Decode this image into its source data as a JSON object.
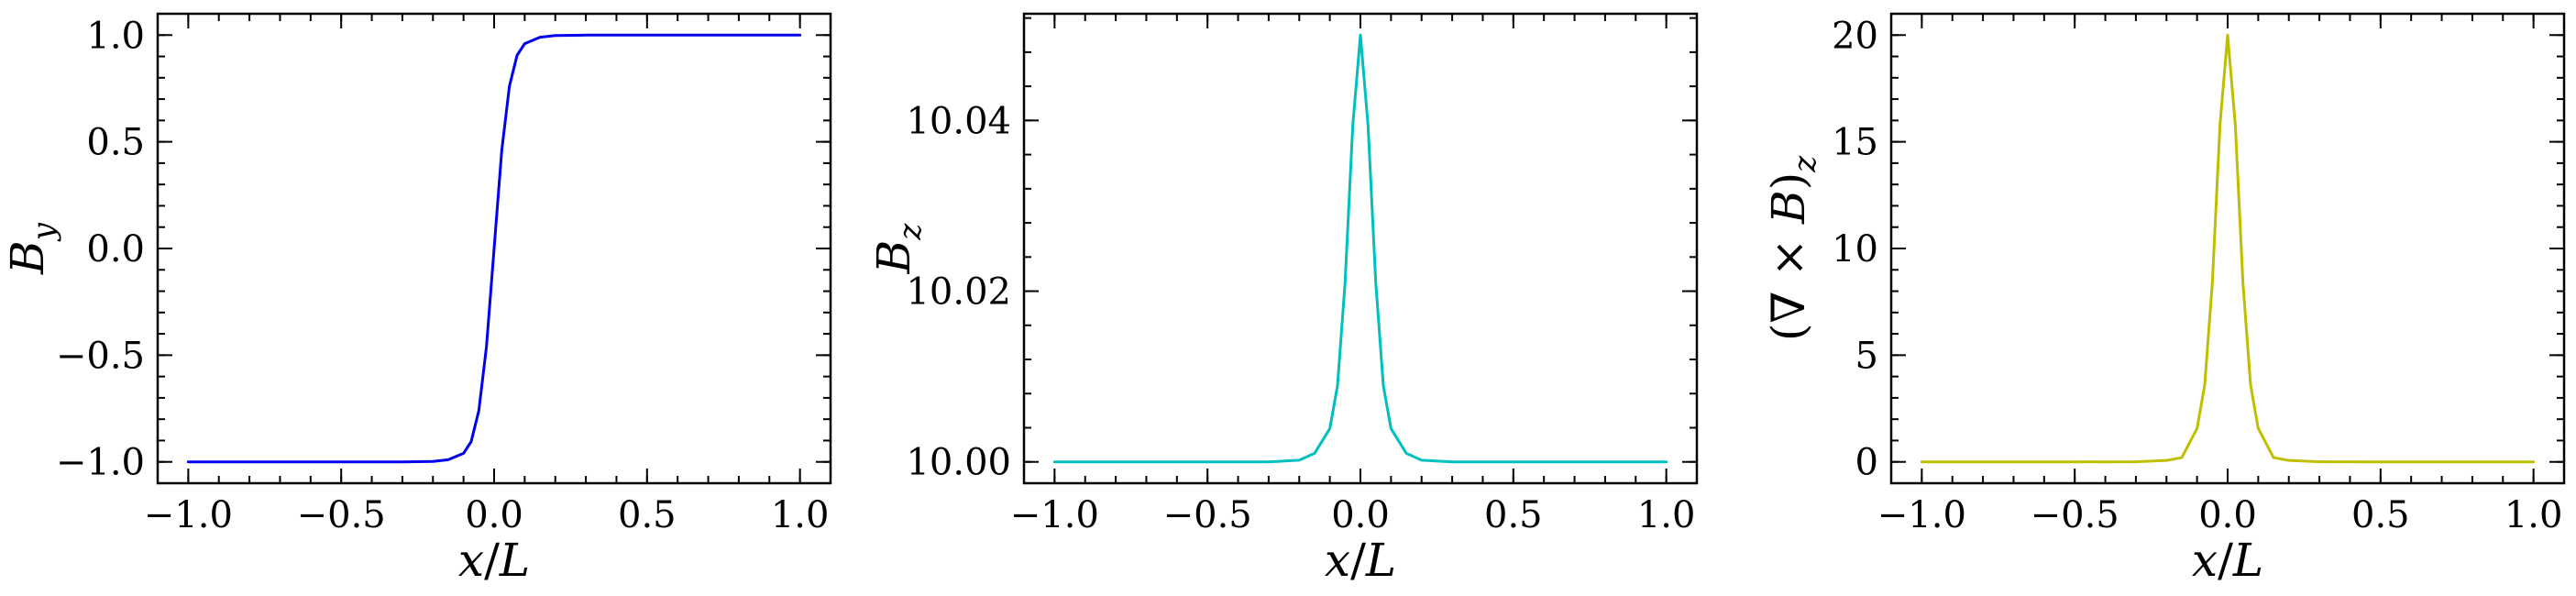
{
  "chart_data": [
    {
      "type": "line",
      "ylabel_parts": [
        "B",
        "y"
      ],
      "xlabel_parts": [
        "x",
        "/",
        "L"
      ],
      "xlim": [
        -1.1,
        1.1
      ],
      "ylim": [
        -1.1,
        1.1
      ],
      "x_ticks": [
        -1.0,
        -0.5,
        0.0,
        0.5,
        1.0
      ],
      "x_tick_labels": [
        "−1.0",
        "−0.5",
        "0.0",
        "0.5",
        "1.0"
      ],
      "y_ticks": [
        -1.0,
        -0.5,
        0.0,
        0.5,
        1.0
      ],
      "y_tick_labels": [
        "−1.0",
        "−0.5",
        "0.0",
        "0.5",
        "1.0"
      ],
      "color": "#0000ee",
      "series": [
        {
          "x": [
            -1.0,
            -0.5,
            -0.3,
            -0.2,
            -0.15,
            -0.1,
            -0.075,
            -0.05,
            -0.025,
            0.0,
            0.025,
            0.05,
            0.075,
            0.1,
            0.15,
            0.2,
            0.3,
            0.5,
            1.0
          ],
          "values": [
            -1.0,
            -1.0,
            -1.0,
            -0.998,
            -0.99,
            -0.96,
            -0.905,
            -0.76,
            -0.46,
            0.0,
            0.46,
            0.76,
            0.905,
            0.96,
            0.99,
            0.998,
            1.0,
            1.0,
            1.0
          ]
        }
      ]
    },
    {
      "type": "line",
      "ylabel_parts": [
        "B",
        "z"
      ],
      "xlabel_parts": [
        "x",
        "/",
        "L"
      ],
      "xlim": [
        -1.1,
        1.1
      ],
      "ylim": [
        9.9975,
        10.0525
      ],
      "x_ticks": [
        -1.0,
        -0.5,
        0.0,
        0.5,
        1.0
      ],
      "x_tick_labels": [
        "−1.0",
        "−0.5",
        "0.0",
        "0.5",
        "1.0"
      ],
      "y_ticks": [
        10.0,
        10.02,
        10.04
      ],
      "y_tick_labels": [
        "10.00",
        "10.02",
        "10.04"
      ],
      "color": "#00bfbf",
      "series": [
        {
          "x": [
            -1.0,
            -0.5,
            -0.3,
            -0.2,
            -0.15,
            -0.1,
            -0.075,
            -0.05,
            -0.025,
            0.0,
            0.025,
            0.05,
            0.075,
            0.1,
            0.15,
            0.2,
            0.3,
            0.5,
            1.0
          ],
          "values": [
            10.0,
            10.0,
            10.0,
            10.0002,
            10.001,
            10.0039,
            10.0089,
            10.0211,
            10.0394,
            10.05,
            10.0394,
            10.0211,
            10.0089,
            10.0039,
            10.001,
            10.0002,
            10.0,
            10.0,
            10.0
          ]
        }
      ]
    },
    {
      "type": "line",
      "ylabel_parts": [
        "(∇ × ",
        "B",
        ")",
        "z"
      ],
      "xlabel_parts": [
        "x",
        "/",
        "L"
      ],
      "xlim": [
        -1.1,
        1.1
      ],
      "ylim": [
        -1.0,
        21.0
      ],
      "x_ticks": [
        -1.0,
        -0.5,
        0.0,
        0.5,
        1.0
      ],
      "x_tick_labels": [
        "−1.0",
        "−0.5",
        "0.0",
        "0.5",
        "1.0"
      ],
      "y_ticks": [
        0,
        5,
        10,
        15,
        20
      ],
      "y_tick_labels": [
        "0",
        "5",
        "10",
        "15",
        "20"
      ],
      "color": "#bfbf00",
      "series": [
        {
          "x": [
            -1.0,
            -0.5,
            -0.3,
            -0.2,
            -0.15,
            -0.1,
            -0.075,
            -0.05,
            -0.025,
            0.0,
            0.025,
            0.05,
            0.075,
            0.1,
            0.15,
            0.2,
            0.3,
            0.5,
            1.0
          ],
          "values": [
            0.0,
            0.0,
            0.005,
            0.07,
            0.2,
            1.57,
            3.6,
            8.4,
            15.8,
            20.0,
            15.8,
            8.4,
            3.6,
            1.57,
            0.2,
            0.07,
            0.005,
            0.0,
            0.0
          ]
        }
      ]
    }
  ]
}
